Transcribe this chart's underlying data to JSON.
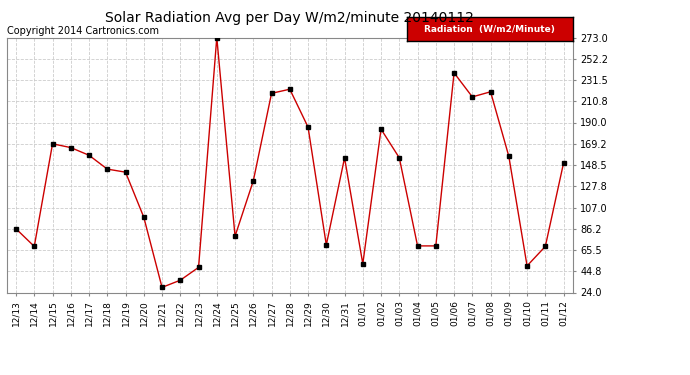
{
  "title": "Solar Radiation Avg per Day W/m2/minute 20140112",
  "copyright": "Copyright 2014 Cartronics.com",
  "legend_label": "Radiation  (W/m2/Minute)",
  "labels": [
    "12/13",
    "12/14",
    "12/15",
    "12/16",
    "12/17",
    "12/18",
    "12/19",
    "12/20",
    "12/21",
    "12/22",
    "12/23",
    "12/24",
    "12/25",
    "12/26",
    "12/27",
    "12/28",
    "12/29",
    "12/30",
    "12/31",
    "01/01",
    "01/02",
    "01/03",
    "01/04",
    "01/05",
    "01/06",
    "01/07",
    "01/08",
    "01/09",
    "01/10",
    "01/11",
    "01/12"
  ],
  "values": [
    86.2,
    69.0,
    169.2,
    165.5,
    158.0,
    144.5,
    141.5,
    97.5,
    29.0,
    36.0,
    48.5,
    273.0,
    79.0,
    133.0,
    218.5,
    222.5,
    185.5,
    70.5,
    155.5,
    52.0,
    183.5,
    155.5,
    69.5,
    69.5,
    238.5,
    215.0,
    220.0,
    157.0,
    50.0,
    69.0,
    150.5
  ],
  "line_color": "#cc0000",
  "marker_color": "#000000",
  "bg_color": "#ffffff",
  "grid_color": "#cccccc",
  "title_fontsize": 10,
  "copyright_fontsize": 7,
  "legend_bg": "#cc0000",
  "legend_text_color": "#ffffff",
  "ylim_min": 24.0,
  "ylim_max": 273.0,
  "yticks": [
    24.0,
    44.8,
    65.5,
    86.2,
    107.0,
    127.8,
    148.5,
    169.2,
    190.0,
    210.8,
    231.5,
    252.2,
    273.0
  ]
}
